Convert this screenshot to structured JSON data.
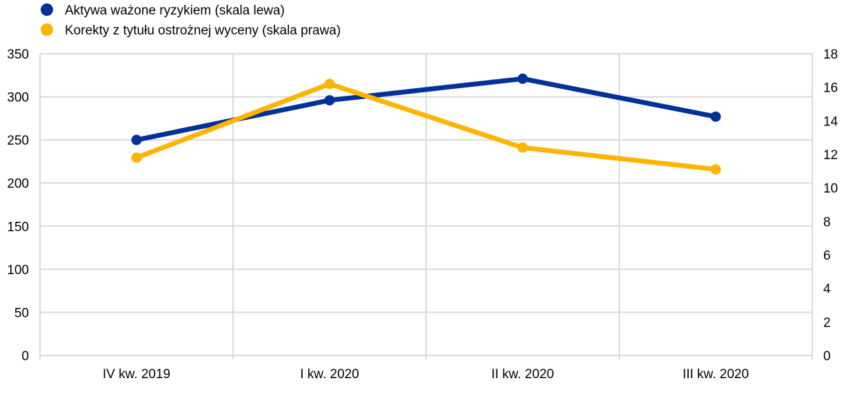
{
  "chart_data": {
    "type": "line",
    "categories": [
      "IV kw. 2019",
      "I kw. 2020",
      "II kw. 2020",
      "III kw. 2020"
    ],
    "series": [
      {
        "name": "Aktywa ważone ryzykiem (skala lewa)",
        "axis": "left",
        "color": "#003299",
        "values": [
          250,
          296,
          321,
          277
        ]
      },
      {
        "name": "Korekty z tytułu ostrożnej wyceny (skala prawa)",
        "axis": "right",
        "color": "#FFB400",
        "values": [
          11.8,
          16.2,
          12.4,
          11.1
        ]
      }
    ],
    "y_left": {
      "min": 0,
      "max": 350,
      "ticks": [
        "0",
        "50",
        "100",
        "150",
        "200",
        "250",
        "300",
        "350"
      ]
    },
    "y_right": {
      "min": 0,
      "max": 18,
      "ticks": [
        "0",
        "2",
        "4",
        "6",
        "8",
        "10",
        "12",
        "14",
        "16",
        "18"
      ]
    },
    "grid": true,
    "legend_position": "top-left",
    "colors": {
      "grid": "#d9d9d9",
      "axis": "#d9d9d9"
    }
  }
}
